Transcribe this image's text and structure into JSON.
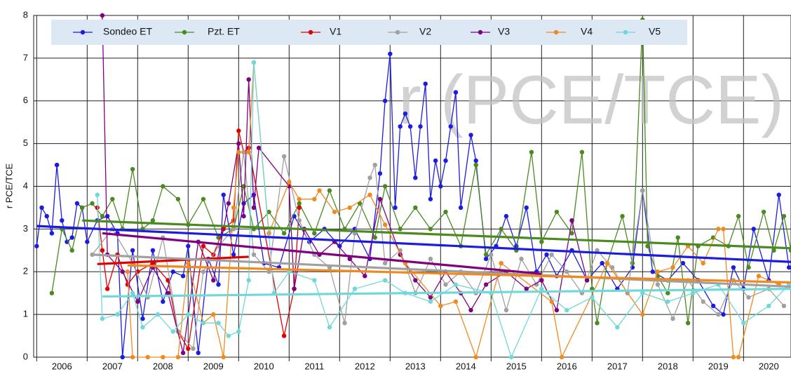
{
  "chart_data": {
    "type": "line",
    "watermark": "r (PCE/TCE)",
    "y_label": "r PCE/TCE",
    "xlim": [
      2005.94,
      2020.94
    ],
    "ylim": [
      0,
      8
    ],
    "xticks": [
      2006,
      2007,
      2008,
      2009,
      2010,
      2011,
      2012,
      2013,
      2014,
      2015,
      2016,
      2017,
      2018,
      2019,
      2020
    ],
    "yticks": [
      0,
      1,
      2,
      3,
      4,
      5,
      6,
      7,
      8
    ],
    "grid": true,
    "series": [
      {
        "name": "Sondeo ET",
        "color": "#1c1ce0",
        "x": [
          2006.0,
          2006.1,
          2006.2,
          2006.3,
          2006.4,
          2006.5,
          2006.6,
          2006.7,
          2006.8,
          2006.9,
          2007.0,
          2007.2,
          2007.4,
          2007.6,
          2007.7,
          2007.9,
          2008.1,
          2008.3,
          2008.5,
          2008.7,
          2008.9,
          2009.0,
          2009.2,
          2009.4,
          2009.6,
          2009.7,
          2009.9,
          2010.1,
          2010.3,
          2010.5,
          2010.8,
          2011.1,
          2011.4,
          2011.7,
          2012.0,
          2012.3,
          2012.6,
          2012.8,
          2012.9,
          2013.0,
          2013.1,
          2013.2,
          2013.3,
          2013.4,
          2013.5,
          2013.6,
          2013.7,
          2013.8,
          2013.9,
          2014.0,
          2014.1,
          2014.2,
          2014.3,
          2014.4,
          2014.6,
          2014.7,
          2014.9,
          2015.1,
          2015.3,
          2015.5,
          2015.7,
          2015.9,
          2016.1,
          2016.3,
          2016.6,
          2016.9,
          2017.2,
          2017.5,
          2017.8,
          2018.0,
          2018.2,
          2018.5,
          2018.8,
          2019.1,
          2019.4,
          2019.6,
          2019.8,
          2020.0,
          2020.2,
          2020.5,
          2020.7,
          2020.9
        ],
        "values": [
          2.6,
          3.5,
          3.3,
          2.9,
          4.5,
          3.2,
          2.7,
          2.8,
          3.6,
          3.5,
          2.7,
          3.2,
          3.3,
          2.9,
          0.0,
          2.5,
          0.9,
          2.5,
          1.3,
          2.0,
          1.9,
          2.6,
          0.1,
          2.3,
          1.7,
          3.8,
          2.4,
          3.6,
          3.8,
          2.2,
          2.1,
          3.3,
          2.7,
          3.0,
          2.6,
          3.0,
          2.3,
          4.3,
          6.0,
          7.1,
          3.5,
          5.4,
          5.7,
          5.4,
          4.2,
          5.4,
          6.4,
          3.7,
          4.6,
          4.0,
          4.6,
          5.4,
          6.2,
          3.5,
          5.2,
          4.6,
          2.3,
          2.6,
          3.3,
          2.6,
          3.5,
          2.0,
          2.4,
          1.9,
          2.5,
          1.8,
          2.2,
          1.6,
          2.1,
          3.9,
          2.0,
          1.8,
          2.2,
          1.8,
          1.2,
          1.0,
          2.1,
          1.6,
          3.0,
          1.8,
          3.8,
          2.1
        ],
        "trend": {
          "x": [
            2006.0,
            2020.94
          ],
          "values": [
            3.07,
            2.23
          ]
        }
      },
      {
        "name": "Pzt. ET",
        "color": "#4a8a20",
        "x": [
          2006.3,
          2006.5,
          2006.7,
          2006.9,
          2007.1,
          2007.3,
          2007.5,
          2007.7,
          2007.9,
          2008.1,
          2008.3,
          2008.5,
          2008.8,
          2009.0,
          2009.3,
          2009.6,
          2009.9,
          2010.1,
          2010.3,
          2010.6,
          2010.9,
          2011.2,
          2011.5,
          2011.8,
          2012.1,
          2012.4,
          2012.7,
          2012.9,
          2013.2,
          2013.5,
          2013.8,
          2014.1,
          2014.4,
          2014.7,
          2014.9,
          2015.2,
          2015.5,
          2015.8,
          2016.0,
          2016.3,
          2016.6,
          2016.8,
          2017.0,
          2017.1,
          2017.3,
          2017.6,
          2017.8,
          2018.0,
          2018.1,
          2018.3,
          2018.5,
          2018.7,
          2018.9,
          2019.1,
          2019.4,
          2019.7,
          2019.9,
          2020.1,
          2020.4,
          2020.6,
          2020.8,
          2020.94
        ],
        "values": [
          1.5,
          3.0,
          2.5,
          3.5,
          3.6,
          3.3,
          3.7,
          3.0,
          4.4,
          3.0,
          3.2,
          4.0,
          3.7,
          3.1,
          3.7,
          2.8,
          3.0,
          4.0,
          3.0,
          3.4,
          2.9,
          3.6,
          2.9,
          3.9,
          3.0,
          3.6,
          2.8,
          4.0,
          3.0,
          3.5,
          3.0,
          3.4,
          2.6,
          4.5,
          2.4,
          3.0,
          2.5,
          4.8,
          2.7,
          3.4,
          2.9,
          4.8,
          1.6,
          0.8,
          2.2,
          3.3,
          2.2,
          7.9,
          2.6,
          1.9,
          1.5,
          2.8,
          0.8,
          2.6,
          2.8,
          2.6,
          3.3,
          2.1,
          3.4,
          2.5,
          3.3,
          2.5
        ],
        "trend": {
          "x": [
            2006.9,
            2020.94
          ],
          "values": [
            3.2,
            2.55
          ]
        }
      },
      {
        "name": "V1",
        "color": "#e00000",
        "x": [
          2007.2,
          2007.3,
          2007.4,
          2007.6,
          2007.8,
          2008.0,
          2008.3,
          2008.6,
          2008.8,
          2009.0,
          2009.3,
          2009.5,
          2009.7,
          2009.9,
          2010.0,
          2010.1,
          2010.2,
          2010.9,
          2011.1,
          2011.2
        ],
        "values": [
          3.5,
          2.5,
          1.6,
          2.4,
          1.7,
          2.0,
          2.2,
          1.8,
          0.6,
          0.2,
          2.6,
          2.4,
          3.0,
          3.2,
          5.3,
          4.8,
          4.9,
          0.5,
          1.6,
          3.5
        ],
        "trend": {
          "x": [
            2007.2,
            2010.2
          ],
          "values": [
            2.18,
            2.35
          ]
        }
      },
      {
        "name": "V2",
        "color": "#a0a0a0",
        "x": [
          2007.1,
          2007.5,
          2007.9,
          2008.2,
          2008.5,
          2008.8,
          2009.1,
          2009.3,
          2009.6,
          2009.9,
          2010.1,
          2010.3,
          2010.6,
          2010.9,
          2011.2,
          2011.5,
          2011.8,
          2012.1,
          2012.3,
          2012.6,
          2012.7,
          2012.9,
          2013.2,
          2013.5,
          2013.8,
          2014.1,
          2014.4,
          2014.7,
          2015.0,
          2015.3,
          2015.6,
          2015.9,
          2016.2,
          2016.5,
          2016.8,
          2017.1,
          2017.4,
          2017.7,
          2018.0,
          2018.3,
          2018.6,
          2018.9,
          2019.2,
          2019.5,
          2019.8,
          2020.1,
          2020.5,
          2020.8
        ],
        "values": [
          2.4,
          3.0,
          2.2,
          1.4,
          2.8,
          0.6,
          0.2,
          2.0,
          2.6,
          3.0,
          4.8,
          2.4,
          2.0,
          4.7,
          3.2,
          2.4,
          2.1,
          0.8,
          2.9,
          4.2,
          4.5,
          2.2,
          2.5,
          1.5,
          2.3,
          1.7,
          2.0,
          1.5,
          2.4,
          1.1,
          2.3,
          1.7,
          2.4,
          2.0,
          1.5,
          2.5,
          2.1,
          1.5,
          3.9,
          1.7,
          0.9,
          1.8,
          1.3,
          1.0,
          1.8,
          1.4,
          1.6,
          1.2
        ],
        "trend": {
          "x": [
            2007.1,
            2020.94
          ],
          "values": [
            2.4,
            1.65
          ]
        }
      },
      {
        "name": "V3",
        "color": "#800080",
        "x": [
          2007.3,
          2007.4,
          2007.7,
          2008.0,
          2008.3,
          2008.6,
          2008.9,
          2009.2,
          2009.5,
          2009.8,
          2010.0,
          2010.1,
          2010.2,
          2010.3,
          2010.4,
          2011.0,
          2011.1,
          2011.3,
          2011.6,
          2011.9,
          2012.2,
          2012.5,
          2012.8,
          2013.2,
          2013.5,
          2013.8,
          2014.1,
          2014.4,
          2014.6,
          2014.9,
          2015.3,
          2015.7,
          2016.0,
          2016.3,
          2016.6,
          2016.9
        ],
        "values": [
          8.0,
          2.4,
          2.0,
          1.3,
          2.1,
          1.5,
          0.1,
          2.7,
          1.8,
          3.6,
          5.0,
          3.3,
          6.5,
          3.5,
          4.9,
          4.0,
          1.6,
          3.0,
          2.4,
          2.7,
          2.3,
          1.9,
          3.7,
          2.4,
          1.8,
          1.4,
          2.0,
          1.5,
          1.1,
          1.7,
          2.0,
          1.6,
          1.8,
          1.1,
          3.2,
          1.8
        ],
        "trend": {
          "x": [
            2007.3,
            2016.0
          ],
          "values": [
            2.9,
            1.95
          ]
        }
      },
      {
        "name": "V4",
        "color": "#f08a20",
        "x": [
          2007.8,
          2007.9,
          2008.2,
          2008.5,
          2008.8,
          2009.0,
          2009.3,
          2009.5,
          2009.7,
          2009.9,
          2010.0,
          2010.2,
          2010.3,
          2010.6,
          2011.0,
          2011.2,
          2011.5,
          2011.6,
          2011.9,
          2012.2,
          2012.6,
          2012.9,
          2013.3,
          2014.0,
          2014.3,
          2014.7,
          2015.2,
          2016.2,
          2016.4,
          2017.3,
          2018.0,
          2018.3,
          2018.6,
          2018.9,
          2019.2,
          2019.5,
          2019.6,
          2019.8,
          2019.9,
          2020.3,
          2020.7
        ],
        "values": [
          2.0,
          0.0,
          0.0,
          0.0,
          0.0,
          2.2,
          0.8,
          1.0,
          0.0,
          3.5,
          4.8,
          4.8,
          6.9,
          2.9,
          4.1,
          3.7,
          3.7,
          3.9,
          3.4,
          3.5,
          3.8,
          3.1,
          2.2,
          1.2,
          1.3,
          0.0,
          2.2,
          1.3,
          0.0,
          2.2,
          1.0,
          2.0,
          2.1,
          2.6,
          2.2,
          3.0,
          3.0,
          0.0,
          0.0,
          1.9,
          1.7
        ],
        "trend": {
          "x": [
            2007.8,
            2020.94
          ],
          "values": [
            2.15,
            1.75
          ]
        }
      },
      {
        "name": "V5",
        "color": "#70d8d8",
        "x": [
          2007.2,
          2007.3,
          2007.6,
          2007.9,
          2008.1,
          2008.4,
          2008.7,
          2009.0,
          2009.3,
          2009.6,
          2009.8,
          2010.0,
          2010.2,
          2010.3,
          2010.7,
          2011.0,
          2011.5,
          2011.8,
          2012.3,
          2012.9,
          2013.3,
          2013.8,
          2014.3,
          2015.0,
          2015.4,
          2016.0,
          2016.5,
          2017.0,
          2017.5,
          2018.0,
          2018.5,
          2019.0,
          2019.5,
          2020.0,
          2020.5,
          2020.9
        ],
        "values": [
          3.8,
          0.9,
          1.0,
          1.5,
          0.7,
          1.0,
          0.6,
          1.0,
          0.8,
          0.8,
          0.5,
          0.6,
          1.8,
          6.9,
          1.5,
          2.0,
          1.8,
          0.7,
          1.6,
          1.8,
          1.5,
          1.3,
          1.7,
          1.5,
          0.0,
          1.6,
          1.1,
          1.4,
          0.7,
          1.5,
          1.3,
          1.5,
          1.7,
          0.8,
          1.2,
          1.7
        ],
        "trend": {
          "x": [
            2007.3,
            2020.94
          ],
          "values": [
            1.42,
            1.6
          ]
        }
      }
    ]
  }
}
